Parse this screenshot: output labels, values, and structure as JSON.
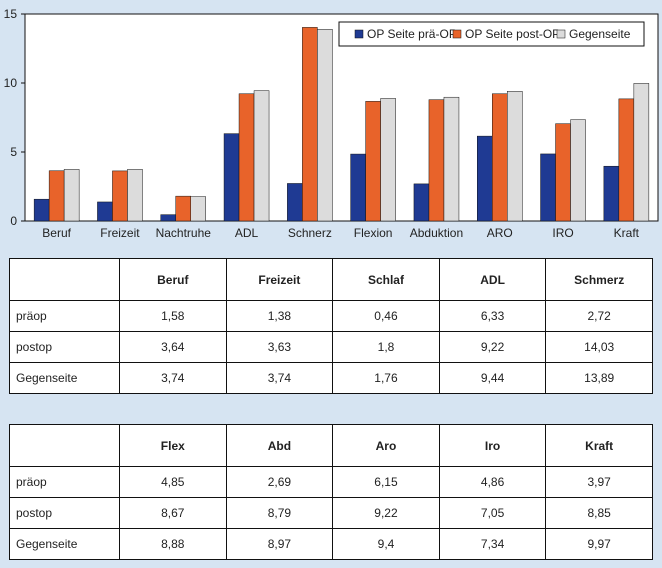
{
  "chart_data": {
    "type": "bar",
    "categories": [
      "Beruf",
      "Freizeit",
      "Nachtruhe",
      "ADL",
      "Schnerz",
      "Flexion",
      "Abduktion",
      "ARO",
      "IRO",
      "Kraft"
    ],
    "series": [
      {
        "name": "OP Seite prä-OP",
        "color": "#1f3a93",
        "values": [
          1.58,
          1.38,
          0.46,
          6.33,
          2.72,
          4.85,
          2.69,
          6.15,
          4.86,
          3.97
        ]
      },
      {
        "name": "OP Seite post-OP",
        "color": "#e8632a",
        "values": [
          3.64,
          3.63,
          1.8,
          9.22,
          14.03,
          8.67,
          8.79,
          9.22,
          7.05,
          8.85
        ]
      },
      {
        "name": "Gegenseite",
        "color": "#dcdcdc",
        "values": [
          3.74,
          3.74,
          1.76,
          9.44,
          13.89,
          8.88,
          8.97,
          9.4,
          7.34,
          9.97
        ]
      }
    ],
    "ylim": [
      0,
      15
    ],
    "yticks": [
      "0",
      "5",
      "10",
      "15"
    ],
    "legend_position": "top-right",
    "title": "",
    "xlabel": "",
    "ylabel": ""
  },
  "table1": {
    "headers": [
      "",
      "Beruf",
      "Freizeit",
      "Schlaf",
      "ADL",
      "Schmerz"
    ],
    "rows": [
      [
        "präop",
        "1,58",
        "1,38",
        "0,46",
        "6,33",
        "2,72"
      ],
      [
        "postop",
        "3,64",
        "3,63",
        "1,8",
        "9,22",
        "14,03"
      ],
      [
        "Gegenseite",
        "3,74",
        "3,74",
        "1,76",
        "9,44",
        "13,89"
      ]
    ]
  },
  "table2": {
    "headers": [
      "",
      "Flex",
      "Abd",
      "Aro",
      "Iro",
      "Kraft"
    ],
    "rows": [
      [
        "präop",
        "4,85",
        "2,69",
        "6,15",
        "4,86",
        "3,97"
      ],
      [
        "postop",
        "8,67",
        "8,79",
        "9,22",
        "7,05",
        "8,85"
      ],
      [
        "Gegenseite",
        "8,88",
        "8,97",
        "9,4",
        "7,34",
        "9,97"
      ]
    ]
  }
}
